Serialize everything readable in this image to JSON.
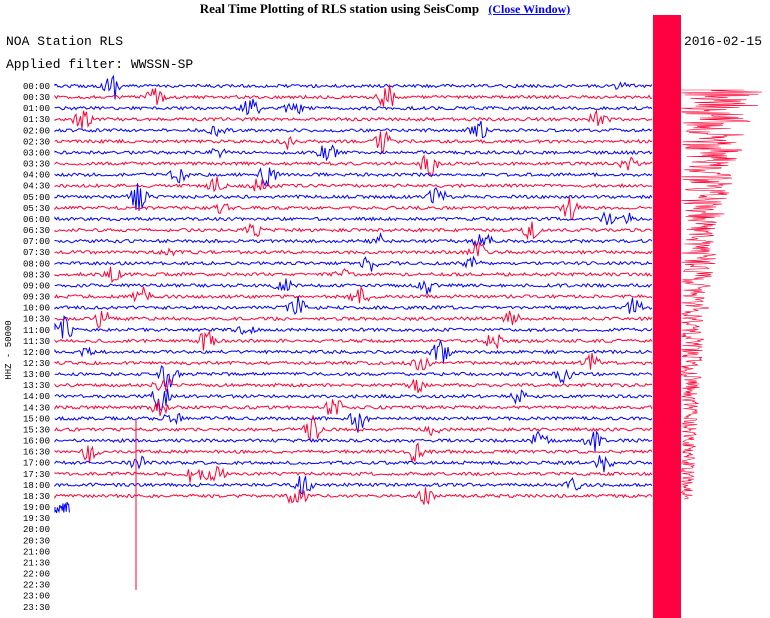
{
  "header": {
    "title": "Real Time Plotting of RLS station using SeisComp",
    "link": "(Close Window)"
  },
  "plot": {
    "station": "NOA Station RLS",
    "date": "2016-02-15",
    "filter": "Applied filter: WWSSN-SP",
    "channel": "HHZ - 50000",
    "times": [
      "00:00",
      "00:30",
      "01:00",
      "01:30",
      "02:00",
      "02:30",
      "03:00",
      "03:30",
      "04:00",
      "04:30",
      "05:00",
      "05:30",
      "06:00",
      "06:30",
      "07:00",
      "07:30",
      "08:00",
      "08:30",
      "09:00",
      "09:30",
      "10:00",
      "10:30",
      "11:00",
      "11:30",
      "12:00",
      "12:30",
      "13:00",
      "13:30",
      "14:00",
      "14:30",
      "15:00",
      "15:30",
      "16:00",
      "16:30",
      "17:00",
      "17:30",
      "18:00",
      "18:30",
      "19:00",
      "19:30",
      "20:00",
      "20:30",
      "21:00",
      "21:30",
      "22:00",
      "22:30",
      "23:00",
      "23:30"
    ]
  }
}
